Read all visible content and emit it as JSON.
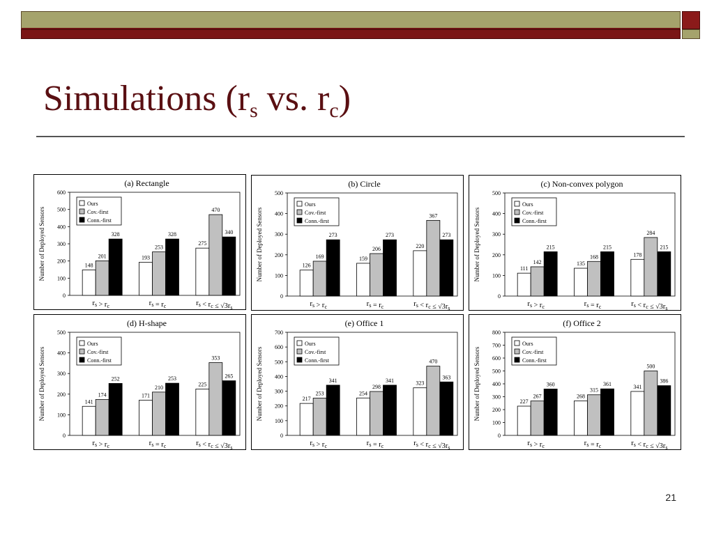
{
  "slide": {
    "title_main": "Simulations (r",
    "title_sub1": "s",
    "title_mid": " vs. r",
    "title_sub2": "c",
    "title_end": ")",
    "page_number": "21"
  },
  "colors": {
    "ours": "#ffffff",
    "cov": "#c0c0c0",
    "conn": "#000000",
    "title": "#5a0f12"
  },
  "legend": [
    "Ours",
    "Cov.-first",
    "Conn.-first"
  ],
  "categories": [
    "rs > rc",
    "rs = rc",
    "rs < rc ≤ √3rs"
  ],
  "chart_data": [
    {
      "type": "bar",
      "title": "(a) Rectangle",
      "ylabel": "Number of Deployed Sensors",
      "ylim": [
        0,
        600
      ],
      "yticks": [
        0,
        100,
        200,
        300,
        400,
        500,
        600
      ],
      "categories": [
        "rs > rc",
        "rs = rc",
        "rs < rc ≤ √3rs"
      ],
      "series": [
        {
          "name": "Ours",
          "values": [
            148,
            193,
            275
          ]
        },
        {
          "name": "Cov.-first",
          "values": [
            201,
            253,
            470
          ]
        },
        {
          "name": "Conn.-first",
          "values": [
            328,
            328,
            340
          ]
        }
      ]
    },
    {
      "type": "bar",
      "title": "(b) Circle",
      "ylabel": "Number of Deployed Sensors",
      "ylim": [
        0,
        500
      ],
      "yticks": [
        0,
        100,
        200,
        300,
        400,
        500
      ],
      "categories": [
        "rs > rc",
        "rs = rc",
        "rs < rc ≤ √3rs"
      ],
      "series": [
        {
          "name": "Ours",
          "values": [
            126,
            159,
            220
          ]
        },
        {
          "name": "Cov.-first",
          "values": [
            169,
            206,
            367
          ]
        },
        {
          "name": "Conn.-first",
          "values": [
            273,
            273,
            273
          ]
        }
      ]
    },
    {
      "type": "bar",
      "title": "(c) Non-convex polygon",
      "ylabel": "Number of Deployed Sensors",
      "ylim": [
        0,
        500
      ],
      "yticks": [
        0,
        100,
        200,
        300,
        400,
        500
      ],
      "categories": [
        "rs > rc",
        "rs = rc",
        "rs < rc ≤ √3rs"
      ],
      "series": [
        {
          "name": "Ours",
          "values": [
            111,
            135,
            178
          ]
        },
        {
          "name": "Cov.-first",
          "values": [
            142,
            168,
            284
          ]
        },
        {
          "name": "Conn.-first",
          "values": [
            215,
            215,
            215
          ]
        }
      ]
    },
    {
      "type": "bar",
      "title": "(d) H-shape",
      "ylabel": "Number of Deployed Sensors",
      "ylim": [
        0,
        500
      ],
      "yticks": [
        0,
        100,
        200,
        300,
        400,
        500
      ],
      "categories": [
        "rs > rc",
        "rs = rc",
        "rs < rc ≤ √3rs"
      ],
      "series": [
        {
          "name": "Ours",
          "values": [
            141,
            171,
            225
          ]
        },
        {
          "name": "Cov.-first",
          "values": [
            174,
            210,
            353
          ]
        },
        {
          "name": "Conn.-first",
          "values": [
            252,
            253,
            265
          ]
        }
      ]
    },
    {
      "type": "bar",
      "title": "(e) Office 1",
      "ylabel": "Number of Deployed Sensors",
      "ylim": [
        0,
        700
      ],
      "yticks": [
        0,
        100,
        200,
        300,
        400,
        500,
        600,
        700
      ],
      "categories": [
        "rs > rc",
        "rs = rc",
        "rs < rc ≤ √3rs"
      ],
      "series": [
        {
          "name": "Ours",
          "values": [
            217,
            254,
            323
          ]
        },
        {
          "name": "Cov.-first",
          "values": [
            253,
            298,
            470
          ]
        },
        {
          "name": "Conn.-first",
          "values": [
            341,
            341,
            363
          ]
        }
      ]
    },
    {
      "type": "bar",
      "title": "(f) Office 2",
      "ylabel": "Number of Deployed Sensors",
      "ylim": [
        0,
        800
      ],
      "yticks": [
        0,
        100,
        200,
        300,
        400,
        500,
        600,
        700,
        800
      ],
      "categories": [
        "rs > rc",
        "rs = rc",
        "rs < rc ≤ √3rs"
      ],
      "series": [
        {
          "name": "Ours",
          "values": [
            227,
            268,
            341
          ]
        },
        {
          "name": "Cov.-first",
          "values": [
            267,
            315,
            500
          ]
        },
        {
          "name": "Conn.-first",
          "values": [
            360,
            361,
            386
          ]
        }
      ]
    }
  ]
}
